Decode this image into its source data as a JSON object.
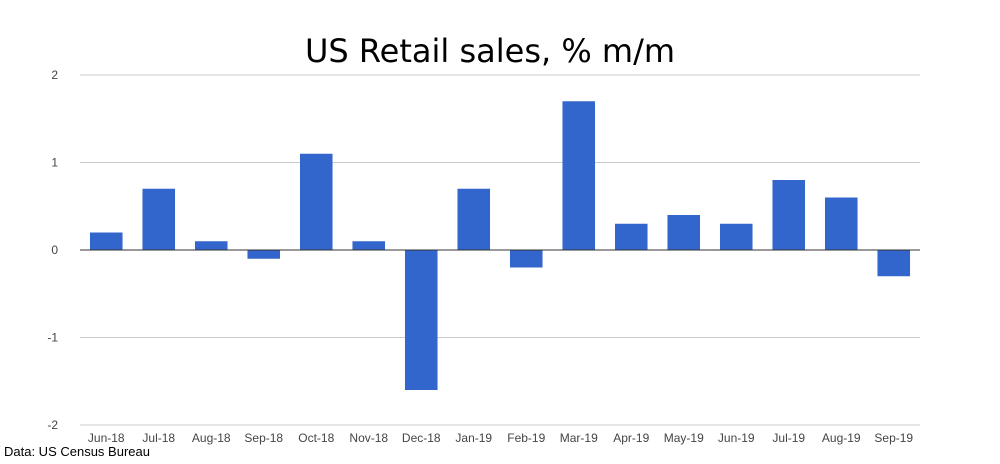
{
  "chart_data": {
    "type": "bar",
    "title": "US Retail sales, % m/m",
    "xlabel": "",
    "ylabel": "",
    "categories": [
      "Jun-18",
      "Jul-18",
      "Aug-18",
      "Sep-18",
      "Oct-18",
      "Nov-18",
      "Dec-18",
      "Jan-19",
      "Feb-19",
      "Mar-19",
      "Apr-19",
      "May-19",
      "Jun-19",
      "Jul-19",
      "Aug-19",
      "Sep-19"
    ],
    "values": [
      0.2,
      0.7,
      0.1,
      -0.1,
      1.1,
      0.1,
      -1.6,
      0.7,
      -0.2,
      1.7,
      0.3,
      0.4,
      0.3,
      0.8,
      0.6,
      -0.3
    ],
    "ylim": [
      -2,
      2
    ],
    "yticks": [
      -2,
      -1,
      0,
      1,
      2
    ],
    "grid": true,
    "legend": "none",
    "bar_color": "#3366cc"
  },
  "source": "Data: US Census Bureau"
}
